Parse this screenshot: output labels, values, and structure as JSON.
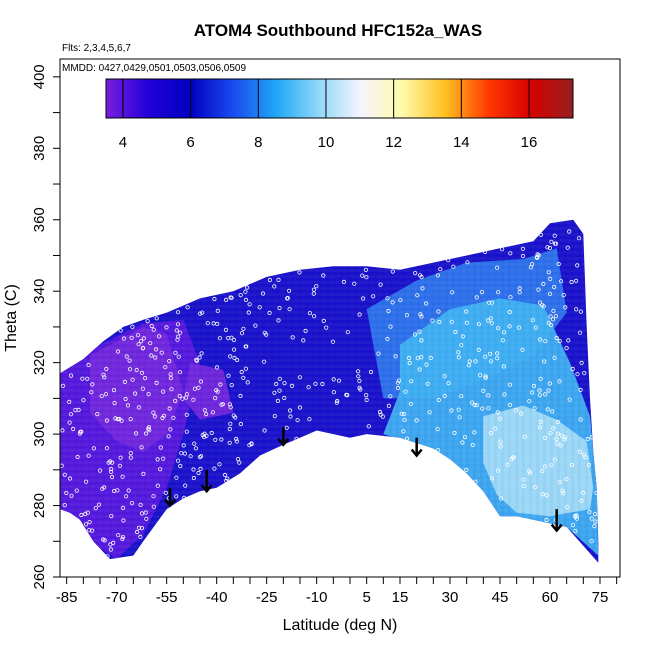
{
  "chart_data": {
    "type": "heatmap",
    "title": "ATOM4 Southbound HFC152a_WAS",
    "flights_note": "Flts: 2,3,4,5,6,7",
    "dates_note": "MMDD: 0427,0429,0501,0503,0506,0509",
    "xlabel": "Latitude (deg N)",
    "ylabel": "Theta (C)",
    "xlim": [
      -87,
      81
    ],
    "ylim": [
      260,
      405
    ],
    "x_ticks": [
      -85,
      -70,
      -55,
      -40,
      -25,
      -10,
      5,
      15,
      30,
      45,
      60,
      75
    ],
    "y_ticks": [
      260,
      280,
      300,
      320,
      340,
      360,
      380,
      400
    ],
    "colorbar": {
      "range": [
        3.5,
        17.3
      ],
      "ticks": [
        4,
        6,
        8,
        10,
        12,
        14,
        16
      ],
      "colors": [
        "#7a1ee0",
        "#2200d8",
        "#0000c0",
        "#1a4cf0",
        "#1fa6f5",
        "#8fd8f8",
        "#f6f4ff",
        "#fffaa8",
        "#ffc021",
        "#ff3a00",
        "#d80000",
        "#962020"
      ]
    },
    "field_colors": {
      "purple": "#7428dc",
      "purple_dark": "#5a1ae0",
      "blue_dark": "#1a12cc",
      "blue": "#2a3ee6",
      "blue_mid": "#2f78ef",
      "blue_light": "#41b4f4",
      "blue_pale": "#a4dcf8"
    },
    "upper_boundary": [
      [
        -87,
        317
      ],
      [
        -80,
        321
      ],
      [
        -74,
        326
      ],
      [
        -68,
        330
      ],
      [
        -62,
        332
      ],
      [
        -55,
        334
      ],
      [
        -45,
        338
      ],
      [
        -35,
        340
      ],
      [
        -25,
        344
      ],
      [
        -15,
        346
      ],
      [
        -5,
        347
      ],
      [
        5,
        347
      ],
      [
        15,
        346
      ],
      [
        25,
        348
      ],
      [
        35,
        350
      ],
      [
        45,
        352
      ],
      [
        55,
        354
      ],
      [
        60,
        359
      ],
      [
        67,
        360
      ],
      [
        70,
        356
      ],
      [
        71,
        330
      ],
      [
        72,
        310
      ],
      [
        73,
        295
      ],
      [
        74,
        285
      ],
      [
        74.5,
        270
      ]
    ],
    "lower_boundary": [
      [
        74.5,
        264
      ],
      [
        65,
        274
      ],
      [
        55,
        276
      ],
      [
        50,
        277
      ],
      [
        45,
        277
      ],
      [
        40,
        284
      ],
      [
        35,
        289
      ],
      [
        30,
        293
      ],
      [
        25,
        296
      ],
      [
        15,
        299
      ],
      [
        5,
        300
      ],
      [
        0,
        299
      ],
      [
        -5,
        300
      ],
      [
        -10,
        301
      ],
      [
        -15,
        299
      ],
      [
        -20,
        297
      ],
      [
        -27,
        294
      ],
      [
        -33,
        289
      ],
      [
        -40,
        285
      ],
      [
        -45,
        284
      ],
      [
        -50,
        282
      ],
      [
        -55,
        279
      ],
      [
        -62,
        270
      ],
      [
        -65,
        266
      ],
      [
        -72,
        265
      ],
      [
        -77,
        270
      ],
      [
        -81,
        276
      ],
      [
        -84,
        278
      ],
      [
        -87,
        279
      ]
    ],
    "regions": [
      {
        "color": "purple_dark",
        "polygon": [
          [
            -87,
            279
          ],
          [
            -87,
            317
          ],
          [
            -75,
            325
          ],
          [
            -62,
            331
          ],
          [
            -50,
            332
          ],
          [
            -45,
            320
          ],
          [
            -50,
            300
          ],
          [
            -55,
            285
          ],
          [
            -62,
            272
          ],
          [
            -70,
            265
          ],
          [
            -78,
            270
          ],
          [
            -84,
            277
          ]
        ]
      },
      {
        "color": "purple",
        "polygon": [
          [
            -78,
            322
          ],
          [
            -62,
            330
          ],
          [
            -55,
            328
          ],
          [
            -50,
            312
          ],
          [
            -55,
            300
          ],
          [
            -62,
            295
          ],
          [
            -70,
            298
          ],
          [
            -78,
            306
          ]
        ]
      },
      {
        "color": "purple",
        "polygon": [
          [
            -48,
            320
          ],
          [
            -38,
            318
          ],
          [
            -35,
            306
          ],
          [
            -45,
            304
          ],
          [
            -50,
            310
          ]
        ]
      },
      {
        "color": "blue_mid",
        "polygon": [
          [
            5,
            335
          ],
          [
            20,
            343
          ],
          [
            35,
            348
          ],
          [
            52,
            349
          ],
          [
            62,
            352
          ],
          [
            65,
            334
          ],
          [
            55,
            322
          ],
          [
            40,
            315
          ],
          [
            25,
            310
          ],
          [
            10,
            310
          ]
        ]
      },
      {
        "color": "blue_light",
        "polygon": [
          [
            15,
            325
          ],
          [
            30,
            335
          ],
          [
            45,
            338
          ],
          [
            58,
            336
          ],
          [
            66,
            320
          ],
          [
            72,
            305
          ],
          [
            74,
            285
          ],
          [
            74.5,
            266
          ],
          [
            65,
            274
          ],
          [
            55,
            276
          ],
          [
            45,
            277
          ],
          [
            40,
            284
          ],
          [
            30,
            293
          ],
          [
            20,
            297
          ],
          [
            10,
            300
          ],
          [
            15,
            312
          ]
        ]
      },
      {
        "color": "blue_pale",
        "polygon": [
          [
            40,
            305
          ],
          [
            52,
            308
          ],
          [
            62,
            304
          ],
          [
            71,
            298
          ],
          [
            73,
            285
          ],
          [
            72,
            279
          ],
          [
            60,
            277
          ],
          [
            50,
            278
          ],
          [
            44,
            283
          ],
          [
            40,
            292
          ]
        ]
      }
    ],
    "arrows": [
      {
        "lat": -54,
        "theta_top": 285,
        "theta_bottom": 280
      },
      {
        "lat": -43,
        "theta_top": 290,
        "theta_bottom": 284
      },
      {
        "lat": -20,
        "theta_top": 302,
        "theta_bottom": 297
      },
      {
        "lat": 20,
        "theta_top": 299,
        "theta_bottom": 294
      },
      {
        "lat": 62,
        "theta_top": 279,
        "theta_bottom": 273
      }
    ],
    "samples_note": "white open-circle sample markers scattered over the field"
  }
}
